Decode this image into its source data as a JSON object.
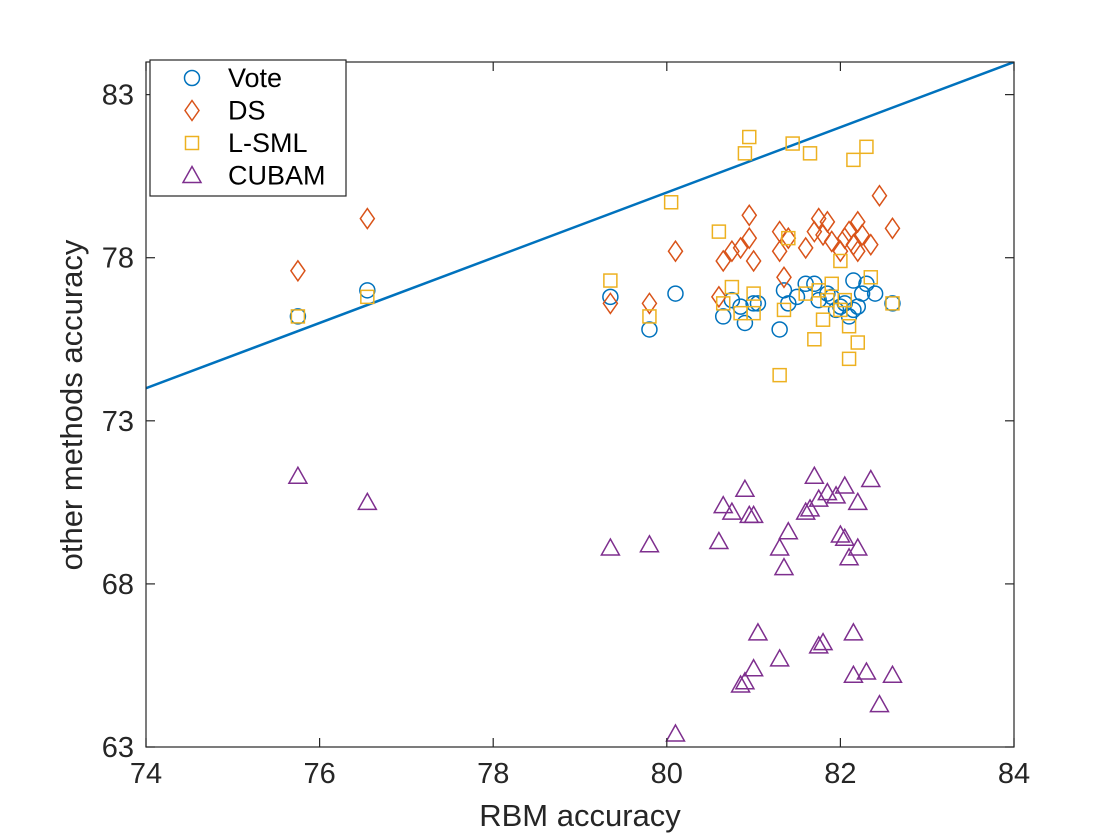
{
  "chart_data": {
    "type": "scatter",
    "title": "",
    "xlabel": "RBM accuracy",
    "ylabel": "other methods accuracy",
    "xlim": [
      74,
      84
    ],
    "ylim": [
      63,
      84
    ],
    "xticks": [
      74,
      76,
      78,
      80,
      82,
      84
    ],
    "yticks": [
      63,
      68,
      73,
      78,
      83
    ],
    "grid": false,
    "legend_position": "top-left",
    "reference_line": {
      "from": [
        74,
        74
      ],
      "to": [
        84,
        84
      ],
      "color": "#0072BD"
    },
    "series": [
      {
        "name": "Vote",
        "marker": "circle",
        "color": "#0072BD",
        "points": [
          [
            75.75,
            76.2
          ],
          [
            76.55,
            77.0
          ],
          [
            79.35,
            76.8
          ],
          [
            79.8,
            75.8
          ],
          [
            80.1,
            76.9
          ],
          [
            80.65,
            76.2
          ],
          [
            80.75,
            76.7
          ],
          [
            80.85,
            76.5
          ],
          [
            80.9,
            76.0
          ],
          [
            81.0,
            76.6
          ],
          [
            81.05,
            76.6
          ],
          [
            81.3,
            75.8
          ],
          [
            81.35,
            77.0
          ],
          [
            81.4,
            76.6
          ],
          [
            81.5,
            76.8
          ],
          [
            81.6,
            77.2
          ],
          [
            81.7,
            77.2
          ],
          [
            81.75,
            76.7
          ],
          [
            81.85,
            76.9
          ],
          [
            81.9,
            76.8
          ],
          [
            82.0,
            76.5
          ],
          [
            82.05,
            76.6
          ],
          [
            82.1,
            76.2
          ],
          [
            82.15,
            76.4
          ],
          [
            82.2,
            76.5
          ],
          [
            82.25,
            76.9
          ],
          [
            82.3,
            77.2
          ],
          [
            82.4,
            76.9
          ],
          [
            82.6,
            76.6
          ],
          [
            82.15,
            77.3
          ],
          [
            81.95,
            76.4
          ]
        ]
      },
      {
        "name": "DS",
        "marker": "diamond",
        "color": "#D95319",
        "points": [
          [
            75.75,
            77.6
          ],
          [
            76.55,
            79.2
          ],
          [
            79.35,
            76.6
          ],
          [
            79.8,
            76.6
          ],
          [
            80.1,
            78.2
          ],
          [
            80.6,
            76.8
          ],
          [
            80.65,
            77.9
          ],
          [
            80.75,
            78.2
          ],
          [
            80.85,
            78.3
          ],
          [
            80.95,
            78.6
          ],
          [
            80.95,
            79.3
          ],
          [
            81.0,
            77.9
          ],
          [
            81.3,
            78.2
          ],
          [
            81.3,
            78.8
          ],
          [
            81.35,
            77.4
          ],
          [
            81.4,
            78.6
          ],
          [
            81.6,
            78.3
          ],
          [
            81.7,
            78.8
          ],
          [
            81.75,
            79.2
          ],
          [
            81.8,
            78.7
          ],
          [
            81.85,
            79.1
          ],
          [
            81.9,
            78.5
          ],
          [
            82.0,
            78.2
          ],
          [
            82.05,
            78.6
          ],
          [
            82.1,
            78.8
          ],
          [
            82.15,
            78.4
          ],
          [
            82.2,
            79.1
          ],
          [
            82.25,
            78.7
          ],
          [
            82.35,
            78.4
          ],
          [
            82.45,
            79.9
          ],
          [
            82.6,
            78.9
          ],
          [
            82.2,
            78.2
          ]
        ]
      },
      {
        "name": "L-SML",
        "marker": "square",
        "color": "#EDB120",
        "points": [
          [
            75.75,
            76.2
          ],
          [
            76.55,
            76.8
          ],
          [
            79.35,
            77.3
          ],
          [
            79.8,
            76.2
          ],
          [
            80.05,
            79.7
          ],
          [
            80.6,
            78.8
          ],
          [
            80.65,
            76.6
          ],
          [
            80.75,
            77.1
          ],
          [
            80.85,
            76.3
          ],
          [
            80.9,
            81.2
          ],
          [
            80.95,
            81.7
          ],
          [
            81.0,
            76.3
          ],
          [
            81.0,
            76.9
          ],
          [
            81.3,
            74.4
          ],
          [
            81.35,
            76.4
          ],
          [
            81.4,
            78.6
          ],
          [
            81.45,
            81.5
          ],
          [
            81.6,
            76.9
          ],
          [
            81.65,
            81.2
          ],
          [
            81.7,
            75.5
          ],
          [
            81.75,
            77.0
          ],
          [
            81.8,
            76.1
          ],
          [
            81.85,
            76.7
          ],
          [
            81.9,
            77.2
          ],
          [
            82.0,
            76.4
          ],
          [
            82.05,
            76.7
          ],
          [
            82.1,
            75.9
          ],
          [
            82.1,
            74.9
          ],
          [
            82.15,
            81.0
          ],
          [
            82.2,
            75.4
          ],
          [
            82.3,
            81.4
          ],
          [
            82.35,
            77.4
          ],
          [
            82.6,
            76.6
          ],
          [
            82.0,
            77.9
          ]
        ]
      },
      {
        "name": "CUBAM",
        "marker": "triangle",
        "color": "#7E2F8E",
        "points": [
          [
            75.75,
            71.3
          ],
          [
            76.55,
            70.5
          ],
          [
            79.35,
            69.1
          ],
          [
            79.8,
            69.2
          ],
          [
            80.1,
            63.4
          ],
          [
            80.6,
            69.3
          ],
          [
            80.65,
            70.4
          ],
          [
            80.75,
            70.2
          ],
          [
            80.85,
            64.9
          ],
          [
            80.9,
            70.9
          ],
          [
            80.9,
            65.0
          ],
          [
            80.95,
            70.1
          ],
          [
            81.0,
            65.4
          ],
          [
            81.0,
            70.1
          ],
          [
            81.05,
            66.5
          ],
          [
            81.3,
            69.1
          ],
          [
            81.3,
            65.7
          ],
          [
            81.35,
            68.5
          ],
          [
            81.4,
            69.6
          ],
          [
            81.6,
            70.2
          ],
          [
            81.65,
            70.3
          ],
          [
            81.7,
            71.3
          ],
          [
            81.75,
            66.1
          ],
          [
            81.75,
            70.6
          ],
          [
            81.8,
            66.2
          ],
          [
            81.85,
            70.8
          ],
          [
            81.95,
            70.7
          ],
          [
            82.0,
            69.5
          ],
          [
            82.05,
            71.0
          ],
          [
            82.05,
            69.4
          ],
          [
            82.1,
            68.8
          ],
          [
            82.15,
            66.5
          ],
          [
            82.15,
            65.2
          ],
          [
            82.2,
            70.5
          ],
          [
            82.2,
            69.1
          ],
          [
            82.3,
            65.3
          ],
          [
            82.35,
            71.2
          ],
          [
            82.45,
            64.3
          ],
          [
            82.6,
            65.2
          ]
        ]
      }
    ]
  }
}
